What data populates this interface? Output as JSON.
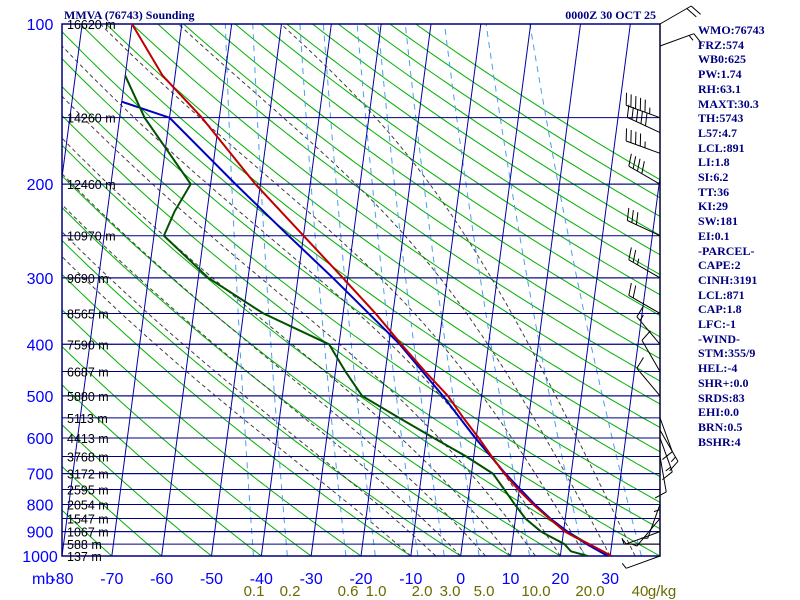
{
  "header": {
    "title": "MMVA (76743) Sounding",
    "time": "0000Z 30 OCT 25"
  },
  "colors": {
    "frame": "#000080",
    "isotherm": "#0000a0",
    "dry_adiabat": "#00b000",
    "moist_adiabat": "#404040",
    "mixing_ratio": "#4aa0e8",
    "temperature": "#c00000",
    "dewpoint": "#005000",
    "parcel": "#0000c0",
    "tick_label": "#0000ff",
    "mixing_label": "#6a6a00"
  },
  "indices": [
    "WMO:76743",
    "FRZ:574",
    "WB0:625",
    "PW:1.74",
    "RH:63.1",
    "MAXT:30.3",
    "TH:5743",
    "L57:4.7",
    "LCL:891",
    "LI:1.8",
    "SI:6.2",
    "TT:36",
    "KI:29",
    "SW:181",
    "EI:0.1",
    "-PARCEL-",
    "CAPE:2",
    "CINH:3191",
    "LCL:871",
    "CAP:1.8",
    "LFC:-1",
    "-WIND-",
    "STM:355/9",
    "HEL:-4",
    "SHR+:0.0",
    "SRDS:83",
    "EHI:0.0",
    "BRN:0.5",
    "BSHR:4"
  ],
  "chart_data": {
    "type": "line",
    "title": "MMVA (76743) Sounding",
    "subtitle": "0000Z 30 OCT 25",
    "x_unit_label": "mb",
    "x_ticks": [
      -80,
      -70,
      -60,
      -50,
      -40,
      -30,
      -20,
      -10,
      0,
      10,
      20,
      30
    ],
    "x_tick_labels": [
      "-80",
      "-70",
      "-60",
      "-50",
      "-40",
      "-30",
      "-20",
      "-10",
      "0",
      "10",
      "20",
      "30"
    ],
    "y_ticks": [
      100,
      200,
      300,
      400,
      500,
      600,
      700,
      800,
      900,
      1000
    ],
    "y_tick_labels": [
      "100",
      "200",
      "300",
      "400",
      "500",
      "600",
      "700",
      "800",
      "900",
      "1000"
    ],
    "xlim": [
      -80,
      40
    ],
    "ylim": [
      1000,
      100
    ],
    "height_levels": [
      {
        "p": 100,
        "label": "16620 m"
      },
      {
        "p": 150,
        "label": "14260 m"
      },
      {
        "p": 200,
        "label": "12460 m"
      },
      {
        "p": 250,
        "label": "10970 m"
      },
      {
        "p": 300,
        "label": "9690 m"
      },
      {
        "p": 350,
        "label": "8565 m"
      },
      {
        "p": 400,
        "label": "7590 m"
      },
      {
        "p": 450,
        "label": "6687 m"
      },
      {
        "p": 500,
        "label": "5880 m"
      },
      {
        "p": 550,
        "label": "5113 m"
      },
      {
        "p": 600,
        "label": "4413 m"
      },
      {
        "p": 650,
        "label": "3768 m"
      },
      {
        "p": 700,
        "label": "3172 m"
      },
      {
        "p": 750,
        "label": "2595 m"
      },
      {
        "p": 800,
        "label": "2054 m"
      },
      {
        "p": 850,
        "label": "1547 m"
      },
      {
        "p": 900,
        "label": "1067 m"
      },
      {
        "p": 950,
        "label": "588 m"
      },
      {
        "p": 1000,
        "label": "137 m"
      }
    ],
    "mixing_ratio_labels": [
      "0.1",
      "0.2",
      "0.6",
      "1.0",
      "2.0",
      "3.0",
      "5.0",
      "10.0",
      "20.0",
      "40",
      "g/kg"
    ],
    "mixing_ratio_values": [
      0.1,
      0.2,
      0.6,
      1.0,
      2.0,
      3.0,
      5.0,
      10.0,
      20.0,
      40
    ],
    "series": [
      {
        "name": "Temperature",
        "points": [
          [
            1000,
            30.3
          ],
          [
            950,
            25.5
          ],
          [
            925,
            22.8
          ],
          [
            900,
            20.3
          ],
          [
            850,
            16.8
          ],
          [
            800,
            13.2
          ],
          [
            750,
            9.8
          ],
          [
            700,
            6.6
          ],
          [
            650,
            3.6
          ],
          [
            600,
            0.5
          ],
          [
            550,
            -3.1
          ],
          [
            500,
            -6.8
          ],
          [
            450,
            -12.0
          ],
          [
            400,
            -17.5
          ],
          [
            350,
            -23.5
          ],
          [
            300,
            -31.0
          ],
          [
            250,
            -40.0
          ],
          [
            200,
            -51.0
          ],
          [
            150,
            -63.5
          ],
          [
            125,
            -72.5
          ],
          [
            100,
            -80.0
          ]
        ]
      },
      {
        "name": "Dewpoint",
        "points": [
          [
            1000,
            25.5
          ],
          [
            980,
            22.0
          ],
          [
            950,
            20.5
          ],
          [
            900,
            15.5
          ],
          [
            850,
            12.0
          ],
          [
            800,
            9.5
          ],
          [
            750,
            7.0
          ],
          [
            700,
            4.3
          ],
          [
            650,
            -1.5
          ],
          [
            600,
            -8.5
          ],
          [
            550,
            -16.0
          ],
          [
            500,
            -24.0
          ],
          [
            450,
            -28.0
          ],
          [
            400,
            -32.0
          ],
          [
            350,
            -46.0
          ],
          [
            300,
            -58.0
          ],
          [
            250,
            -68.0
          ],
          [
            225,
            -66.5
          ],
          [
            200,
            -64.0
          ],
          [
            150,
            -75.0
          ],
          [
            125,
            -80.0
          ]
        ]
      },
      {
        "name": "Parcel",
        "points": [
          [
            1000,
            29.5
          ],
          [
            950,
            25.0
          ],
          [
            900,
            20.8
          ],
          [
            850,
            17.0
          ],
          [
            800,
            13.5
          ],
          [
            700,
            6.8
          ],
          [
            600,
            -0.2
          ],
          [
            500,
            -7.8
          ],
          [
            400,
            -17.8
          ],
          [
            300,
            -33.0
          ],
          [
            250,
            -43.0
          ],
          [
            200,
            -55.0
          ],
          [
            150,
            -70.0
          ],
          [
            140,
            -80.0
          ]
        ]
      }
    ],
    "wind_barbs": [
      {
        "p": 100,
        "dir": 60,
        "spd": 20
      },
      {
        "p": 110,
        "dir": 70,
        "spd": 15
      },
      {
        "p": 150,
        "dir": 290,
        "spd": 55
      },
      {
        "p": 160,
        "dir": 295,
        "spd": 50
      },
      {
        "p": 175,
        "dir": 290,
        "spd": 45
      },
      {
        "p": 200,
        "dir": 300,
        "spd": 40
      },
      {
        "p": 250,
        "dir": 295,
        "spd": 30
      },
      {
        "p": 300,
        "dir": 300,
        "spd": 25
      },
      {
        "p": 350,
        "dir": 300,
        "spd": 20
      },
      {
        "p": 400,
        "dir": 320,
        "spd": 15
      },
      {
        "p": 450,
        "dir": 330,
        "spd": 10
      },
      {
        "p": 500,
        "dir": 320,
        "spd": 10
      },
      {
        "p": 550,
        "dir": 160,
        "spd": 10
      },
      {
        "p": 580,
        "dir": 150,
        "spd": 15
      },
      {
        "p": 600,
        "dir": 160,
        "spd": 15
      },
      {
        "p": 650,
        "dir": 170,
        "spd": 10
      },
      {
        "p": 700,
        "dir": 180,
        "spd": 5
      },
      {
        "p": 800,
        "dir": 200,
        "spd": 5
      },
      {
        "p": 850,
        "dir": 220,
        "spd": 5
      },
      {
        "p": 900,
        "dir": 250,
        "spd": 5
      },
      {
        "p": 950,
        "dir": 270,
        "spd": 5
      },
      {
        "p": 1000,
        "dir": 250,
        "spd": 5
      }
    ]
  }
}
